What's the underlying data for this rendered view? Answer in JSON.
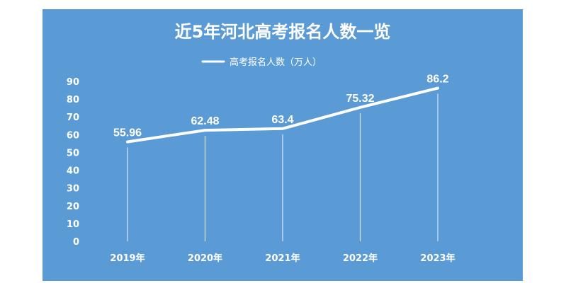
{
  "chart_data": {
    "type": "line",
    "title": "近5年河北高考报名人数一览",
    "categories": [
      "2019年",
      "2020年",
      "2021年",
      "2022年",
      "2023年"
    ],
    "series": [
      {
        "name": "高考报名人数（万人）",
        "values": [
          55.96,
          62.48,
          63.4,
          75.32,
          86.2
        ]
      }
    ],
    "data_labels": [
      "55.96",
      "62.48",
      "63.4",
      "75.32",
      "86.2"
    ],
    "ylim": [
      0,
      90
    ],
    "yticks": [
      "0",
      "10",
      "20",
      "30",
      "40",
      "50",
      "60",
      "70",
      "80",
      "90"
    ],
    "grid": false,
    "drop_lines": true,
    "legend_position": "top",
    "colors": {
      "background": "#5b9bd5",
      "line": "#ffffff",
      "text": "#ffffff"
    }
  }
}
